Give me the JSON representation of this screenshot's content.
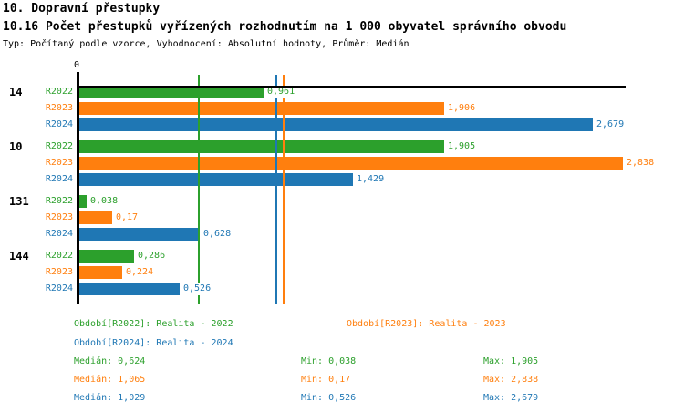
{
  "header": {
    "title": "10. Dopravní přestupky",
    "subtitle": "10.16 Počet přestupků vyřízených rozhodnutím na 1 000 obyvatel správního obvodu",
    "meta": "Typ: Počítaný podle vzorce, Vyhodnocení: Absolutní hodnoty, Průměr: Medián"
  },
  "axis": {
    "zero_label": "0"
  },
  "colors": {
    "r2022": "#2ca02c",
    "r2023": "#ff7f0e",
    "r2024": "#1f77b4",
    "axis": "#000000"
  },
  "chart_data": {
    "type": "bar",
    "orientation": "horizontal",
    "title": "10.16 Počet přestupků vyřízených rozhodnutím na 1 000 obyvatel správního obvodu",
    "categories": [
      "14",
      "10",
      "131",
      "144"
    ],
    "series": [
      {
        "name": "R2022",
        "color": "#2ca02c",
        "values": [
          0.961,
          1.905,
          0.038,
          0.286
        ],
        "value_labels": [
          "0,961",
          "1,905",
          "0,038",
          "0,286"
        ]
      },
      {
        "name": "R2023",
        "color": "#ff7f0e",
        "values": [
          1.906,
          2.838,
          0.17,
          0.224
        ],
        "value_labels": [
          "1,906",
          "2,838",
          "0,17",
          "0,224"
        ]
      },
      {
        "name": "R2024",
        "color": "#1f77b4",
        "values": [
          2.679,
          1.429,
          0.628,
          0.526
        ],
        "value_labels": [
          "2,679",
          "1,429",
          "0,628",
          "0,526"
        ]
      }
    ],
    "median_lines": [
      {
        "series": "R2022",
        "value": 0.624,
        "color": "#2ca02c"
      },
      {
        "series": "R2023",
        "value": 1.065,
        "color": "#ff7f0e"
      },
      {
        "series": "R2024",
        "value": 1.029,
        "color": "#1f77b4"
      }
    ],
    "xlim": [
      0,
      2.86
    ],
    "grid": false,
    "legend_position": "bottom"
  },
  "legend": {
    "items": [
      {
        "label": "Období[R2022]: Realita - 2022",
        "color": "#2ca02c"
      },
      {
        "label": "Období[R2023]: Realita - 2023",
        "color": "#ff7f0e"
      },
      {
        "label": "Období[R2024]: Realita - 2024",
        "color": "#1f77b4"
      }
    ]
  },
  "stats": {
    "rows": [
      {
        "median": "Medián: 0,624",
        "min": "Min: 0,038",
        "max": "Max: 1,905",
        "color": "#2ca02c"
      },
      {
        "median": "Medián: 1,065",
        "min": "Min: 0,17",
        "max": "Max: 2,838",
        "color": "#ff7f0e"
      },
      {
        "median": "Medián: 1,029",
        "min": "Min: 0,526",
        "max": "Max: 2,679",
        "color": "#1f77b4"
      }
    ]
  }
}
